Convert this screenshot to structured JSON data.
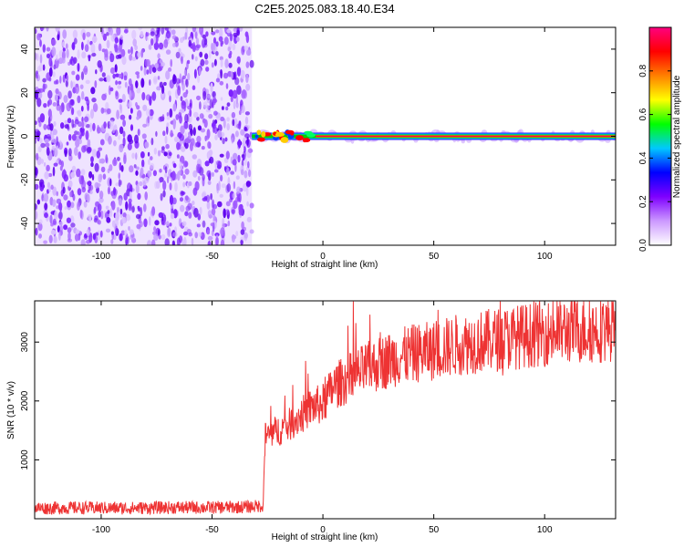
{
  "title": "C2E5.2025.083.18.40.E34",
  "chart_data": [
    {
      "type": "heatmap",
      "name": "spectrogram",
      "xlabel": "Height of straight line (km)",
      "ylabel": "Frequency (Hz)",
      "xlim": [
        -130,
        132
      ],
      "ylim": [
        -50,
        50
      ],
      "x_ticks": [
        -100,
        -50,
        0,
        50,
        100
      ],
      "y_ticks": [
        -40,
        -20,
        0,
        20,
        40
      ],
      "noise_region_x": [
        -130,
        -32
      ],
      "signal_band_x": [
        -32,
        132
      ],
      "signal_band_frequency_hz": 0,
      "colorbar": {
        "label": "Normalized spectral amplitude",
        "range": [
          0,
          1
        ],
        "ticks": [
          0.0,
          0.2,
          0.4,
          0.6,
          0.8
        ],
        "colors": [
          "#ffffff",
          "#cc99ff",
          "#7f00ff",
          "#0000ff",
          "#00c8ff",
          "#00ff00",
          "#ffff00",
          "#ff8000",
          "#ff0000",
          "#ff0080"
        ]
      }
    },
    {
      "type": "line",
      "name": "snr",
      "xlabel": "Height of straight line (km)",
      "ylabel": "SNR (10 * v/v)",
      "xlim": [
        -130,
        132
      ],
      "ylim": [
        0,
        3700
      ],
      "x_ticks": [
        -100,
        -50,
        0,
        50,
        100
      ],
      "y_ticks": [
        1000,
        2000,
        3000
      ],
      "line_color": "#ee3333",
      "x": [
        -130,
        -110,
        -90,
        -70,
        -50,
        -35,
        -27,
        -26,
        -20,
        -15,
        -10,
        -5,
        0,
        5,
        10,
        20,
        30,
        40,
        50,
        60,
        70,
        80,
        90,
        100,
        110,
        120,
        132
      ],
      "y": [
        180,
        185,
        180,
        190,
        190,
        200,
        220,
        1400,
        1500,
        1600,
        1750,
        1900,
        1950,
        2250,
        2350,
        2550,
        2700,
        2800,
        2850,
        2950,
        3000,
        3050,
        3100,
        3150,
        3200,
        3200,
        3250
      ]
    }
  ]
}
